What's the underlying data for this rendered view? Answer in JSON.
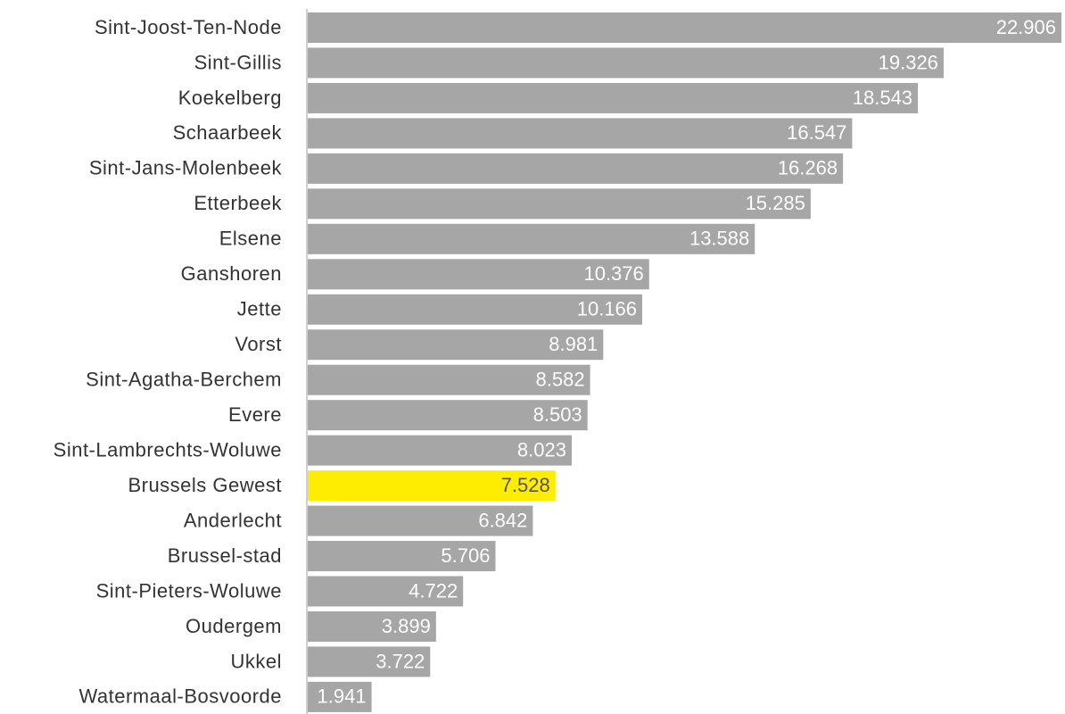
{
  "chart_data": {
    "type": "hbar",
    "categories": [
      "Sint-Joost-Ten-Node",
      "Sint-Gillis",
      "Koekelberg",
      "Schaarbeek",
      "Sint-Jans-Molenbeek",
      "Etterbeek",
      "Elsene",
      "Ganshoren",
      "Jette",
      "Vorst",
      "Sint-Agatha-Berchem",
      "Evere",
      "Sint-Lambrechts-Woluwe",
      "Brussels Gewest",
      "Anderlecht",
      "Brussel-stad",
      "Sint-Pieters-Woluwe",
      "Oudergem",
      "Ukkel",
      "Watermaal-Bosvoorde"
    ],
    "values": [
      22906,
      19326,
      18543,
      16547,
      16268,
      15285,
      13588,
      10376,
      10166,
      8981,
      8582,
      8503,
      8023,
      7528,
      6842,
      5706,
      4722,
      3899,
      3722,
      1941
    ],
    "value_labels": [
      "22.906",
      "19.326",
      "18.543",
      "16.547",
      "16.268",
      "15.285",
      "13.588",
      "10.376",
      "10.166",
      "8.981",
      "8.582",
      "8.503",
      "8.023",
      "7.528",
      "6.842",
      "5.706",
      "4.722",
      "3.899",
      "3.722",
      "1.941"
    ],
    "colors": [
      "#a6a6a6",
      "#a6a6a6",
      "#a6a6a6",
      "#a6a6a6",
      "#a6a6a6",
      "#a6a6a6",
      "#a6a6a6",
      "#a6a6a6",
      "#a6a6a6",
      "#a6a6a6",
      "#a6a6a6",
      "#a6a6a6",
      "#a6a6a6",
      "#ffed00",
      "#a6a6a6",
      "#a6a6a6",
      "#a6a6a6",
      "#a6a6a6",
      "#a6a6a6",
      "#a6a6a6"
    ]
  }
}
